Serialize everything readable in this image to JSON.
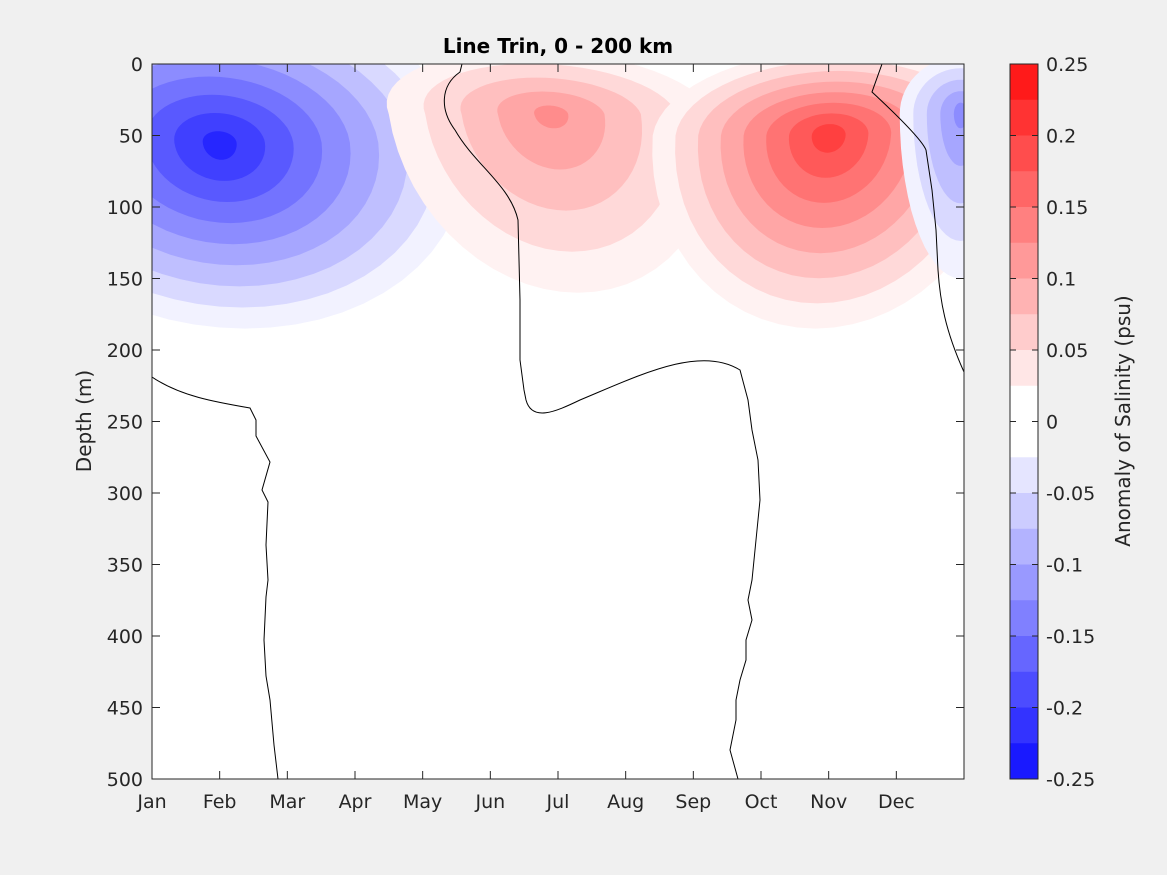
{
  "chart_data": {
    "type": "contour",
    "title": "Line Trin, 0 - 200 km",
    "xlabel": "",
    "ylabel": "Depth (m)",
    "colorbar_label": "Anomaly of Salinity (psu)",
    "x_ticks": [
      "Jan",
      "Feb",
      "Mar",
      "Apr",
      "May",
      "Jun",
      "Jul",
      "Aug",
      "Sep",
      "Oct",
      "Nov",
      "Dec"
    ],
    "x_tick_months": [
      0,
      1,
      2,
      3,
      4,
      5,
      6,
      7,
      8,
      9,
      10,
      11
    ],
    "y_ticks": [
      "0",
      "50",
      "100",
      "150",
      "200",
      "250",
      "300",
      "350",
      "400",
      "450",
      "500"
    ],
    "y_tick_values": [
      0,
      50,
      100,
      150,
      200,
      250,
      300,
      350,
      400,
      450,
      500
    ],
    "ylim": [
      0,
      500
    ],
    "y_reversed": true,
    "xlim_months": [
      0,
      12
    ],
    "colorbar_ticks": [
      "0.25",
      "0.2",
      "0.15",
      "0.1",
      "0.05",
      "0",
      "-0.05",
      "-0.1",
      "-0.15",
      "-0.2",
      "-0.25"
    ],
    "colorbar_tick_values": [
      0.25,
      0.2,
      0.15,
      0.1,
      0.05,
      0,
      -0.05,
      -0.1,
      -0.15,
      -0.2,
      -0.25
    ],
    "clim": [
      -0.25,
      0.25
    ],
    "level_step": 0.025,
    "anomaly_features": [
      {
        "sign": "negative",
        "center_month": 1.0,
        "center_depth": 55,
        "peak_value": -0.22
      },
      {
        "sign": "positive",
        "center_month": 5.9,
        "center_depth": 35,
        "peak_value": 0.12
      },
      {
        "sign": "positive",
        "center_month": 10.0,
        "center_depth": 50,
        "peak_value": 0.2
      },
      {
        "sign": "negative",
        "center_month": 11.95,
        "center_depth": 35,
        "peak_value": -0.12
      }
    ],
    "grid": false,
    "colormap": "blue-white-red",
    "colors": {
      "negative_max": "#0000ff",
      "zero": "#ffffff",
      "positive_max": "#ff0000",
      "figure_bg": "#f0f0f0",
      "text": "#262626"
    }
  }
}
